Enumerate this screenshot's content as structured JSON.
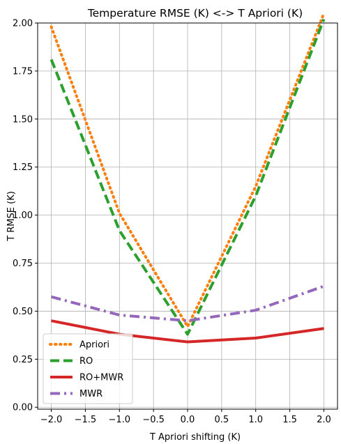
{
  "chart_data": {
    "type": "line",
    "title": "Temperature RMSE (K) <-> T Apriori (K)",
    "xlabel": "T Apriori shifting (K)",
    "ylabel": "T RMSE (K)",
    "xlim": [
      -2.2,
      2.2
    ],
    "ylim": [
      -0.01,
      2.0
    ],
    "xticks": [
      -2.0,
      -1.5,
      -1.0,
      -0.5,
      0.0,
      0.5,
      1.0,
      1.5,
      2.0
    ],
    "xtick_labels": [
      "−2.0",
      "−1.5",
      "−1.0",
      "−0.5",
      "0.0",
      "0.5",
      "1.0",
      "1.5",
      "2.0"
    ],
    "yticks": [
      0.0,
      0.25,
      0.5,
      0.75,
      1.0,
      1.25,
      1.5,
      1.75,
      2.0
    ],
    "ytick_labels": [
      "0.00",
      "0.25",
      "0.50",
      "0.75",
      "1.00",
      "1.25",
      "1.50",
      "1.75",
      "2.00"
    ],
    "grid": true,
    "legend_position": "lower-left",
    "x": [
      -2.0,
      -1.0,
      0.0,
      1.0,
      2.0
    ],
    "series": [
      {
        "name": "Apriori",
        "color": "#ff7f0e",
        "style": "dotted",
        "values": [
          1.98,
          1.01,
          0.42,
          1.15,
          2.05
        ]
      },
      {
        "name": "RO",
        "color": "#2ca02c",
        "style": "dashed",
        "values": [
          1.81,
          0.92,
          0.38,
          1.1,
          2.02
        ]
      },
      {
        "name": "RO+MWR",
        "color": "#d62728",
        "style": "solid",
        "values": [
          0.45,
          0.38,
          0.34,
          0.36,
          0.41
        ]
      },
      {
        "name": "MWR",
        "color": "#9467bd",
        "style": "dashdot",
        "values": [
          0.575,
          0.48,
          0.45,
          0.505,
          0.63
        ]
      }
    ]
  }
}
